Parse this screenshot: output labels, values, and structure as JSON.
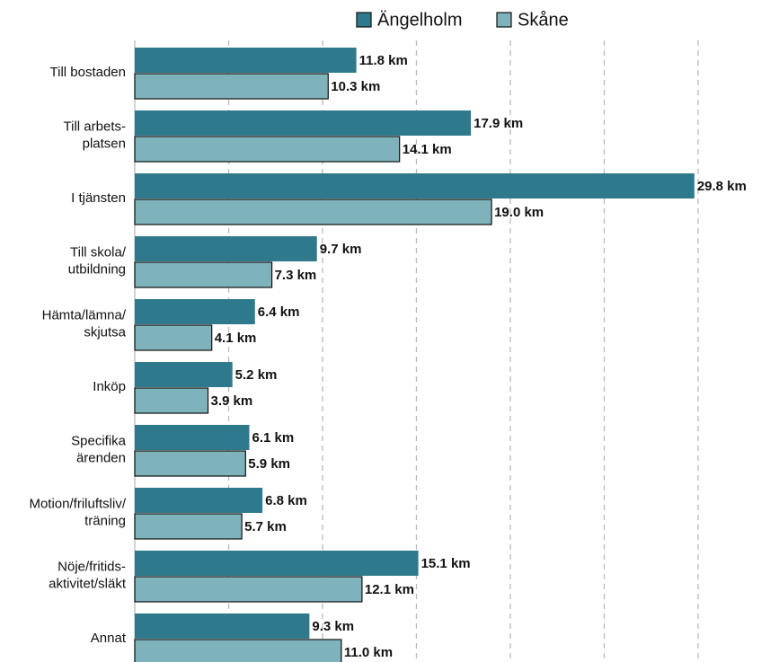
{
  "chart_data": {
    "type": "bar",
    "orientation": "horizontal",
    "categories": [
      "Till bostaden",
      "Till arbets-\nplatsen",
      "I tjänsten",
      "Till skola/\nutbildning",
      "Hämta/lämna/\nskjutsa",
      "Inköp",
      "Specifika\närenden",
      "Motion/friluftsliv/\nträning",
      "Nöje/fritids-\naktivitet/släkt",
      "Annat"
    ],
    "series": [
      {
        "name": "Ängelholm",
        "color": "#2e7a8c",
        "values": [
          11.8,
          17.9,
          29.8,
          9.7,
          6.4,
          5.2,
          6.1,
          6.8,
          15.1,
          9.3
        ],
        "value_labels": [
          "11.8 km",
          "17.9 km",
          "29.8 km",
          "9.7 km",
          "6.4 km",
          "5.2 km",
          "6.1 km",
          "6.8 km",
          "15.1 km",
          "9.3 km"
        ]
      },
      {
        "name": "Skåne",
        "color": "#7fb3bc",
        "values": [
          10.3,
          14.1,
          19.0,
          7.3,
          4.1,
          3.9,
          5.9,
          5.7,
          12.1,
          11.0
        ],
        "value_labels": [
          "10.3 km",
          "14.1 km",
          "19.0 km",
          "7.3 km",
          "4.1 km",
          "3.9 km",
          "5.9 km",
          "5.7 km",
          "12.1 km",
          "11.0 km"
        ]
      }
    ],
    "xlim": [
      0,
      30
    ],
    "xticks": [
      0,
      5,
      10,
      15,
      20,
      25,
      30
    ],
    "grid": true,
    "legend": "top"
  }
}
